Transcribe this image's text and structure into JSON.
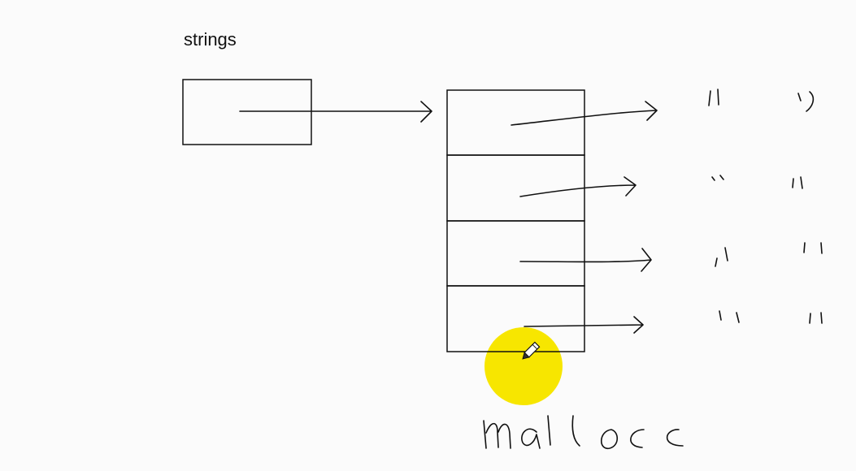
{
  "diagram": {
    "pointer_label": "strings",
    "annotation": "malloc",
    "highlight_color": "#f7e600",
    "cursor_icon": "pencil-icon",
    "array_slots": 4
  }
}
